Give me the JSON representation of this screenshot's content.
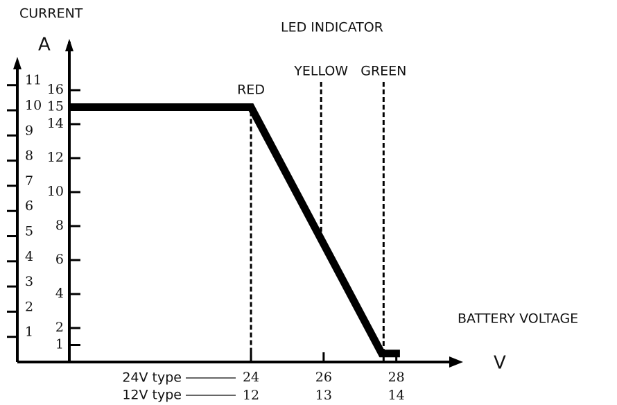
{
  "chart_data": {
    "type": "line",
    "y_title": "CURRENT",
    "y_unit": "A",
    "x_title": "BATTERY VOLTAGE",
    "x_unit": "V",
    "indicator_title": "LED INDICATOR",
    "indicators": [
      {
        "name": "RED",
        "x": 24
      },
      {
        "name": "YELLOW",
        "x": 25.93
      },
      {
        "name": "GREEN",
        "x": 27.65
      }
    ],
    "x": [
      19,
      24,
      27.6,
      28.1
    ],
    "series": [
      {
        "name": "24V type",
        "color": "#000000",
        "values": [
          15,
          15,
          0.5,
          0.5
        ]
      }
    ],
    "xlim": [
      19,
      29.8
    ],
    "xticks": [
      24,
      26,
      28
    ],
    "x2_name": "12V type",
    "x2lim": [
      9.5,
      14.9
    ],
    "x2ticks": [
      12,
      13,
      14
    ],
    "ylim": [
      0,
      16
    ],
    "yticks": [
      1,
      2,
      4,
      6,
      8,
      10,
      12,
      14,
      15,
      16
    ],
    "y2lim": [
      0,
      10.8
    ],
    "y2ticks": [
      1,
      2,
      3,
      4,
      5,
      6,
      7,
      8,
      9,
      10,
      11
    ]
  }
}
